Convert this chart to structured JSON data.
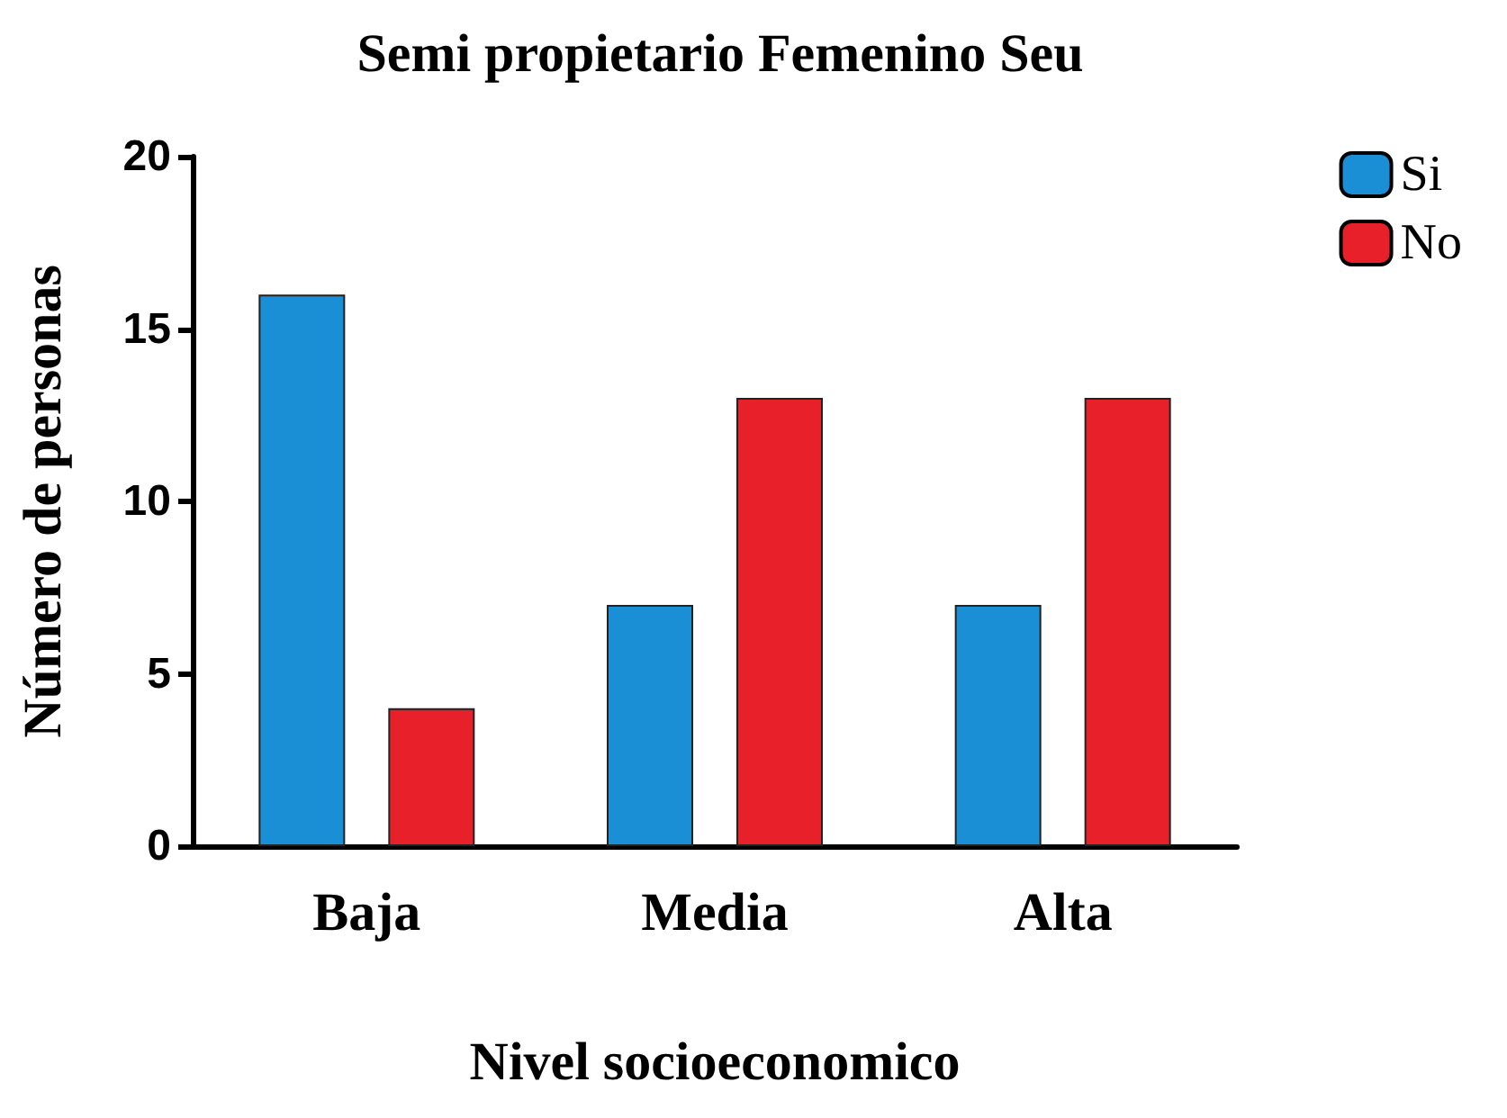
{
  "chart_data": {
    "type": "bar",
    "title": "Semi propietario Femenino Seu",
    "xlabel": "Nivel socioeconomico",
    "ylabel": "Número de personas",
    "categories": [
      "Baja",
      "Media",
      "Alta"
    ],
    "series": [
      {
        "name": "Si",
        "color": "#1b8fd6",
        "values": [
          16,
          7,
          7
        ]
      },
      {
        "name": "No",
        "color": "#e8202a",
        "values": [
          4,
          13,
          13
        ]
      }
    ],
    "ylim": [
      0,
      20
    ],
    "yticks": [
      0,
      5,
      10,
      15,
      20
    ],
    "grid": false,
    "legend": "top right"
  }
}
